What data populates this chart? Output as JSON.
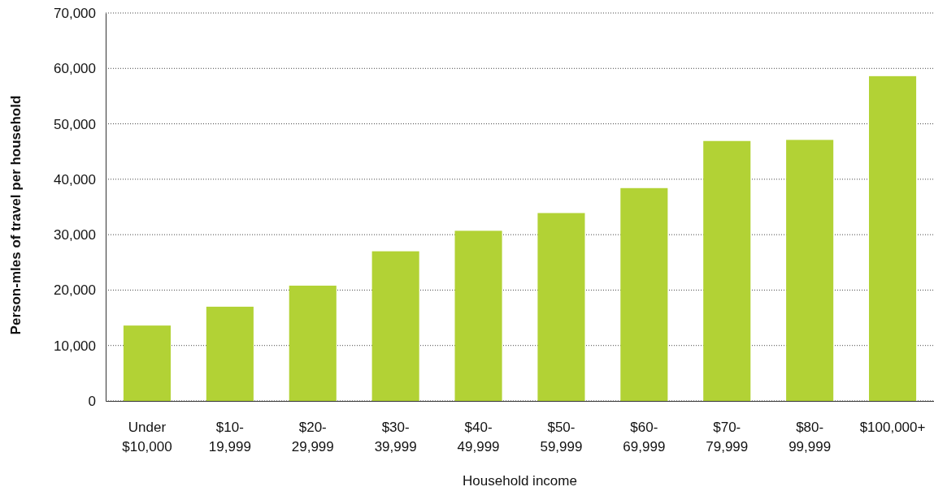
{
  "chart_data": {
    "type": "bar",
    "xlabel": "Household income",
    "ylabel": "Person-mles of travel per household",
    "categories": [
      "Under\n$10,000",
      "$10-\n19,999",
      "$20-\n29,999",
      "$30-\n39,999",
      "$40-\n49,999",
      "$50-\n59,999",
      "$60-\n69,999",
      "$70-\n79,999",
      "$80-\n99,999",
      "$100,000+"
    ],
    "values": [
      13600,
      17000,
      20800,
      27000,
      30700,
      33900,
      38400,
      46900,
      47100,
      58600
    ],
    "color": "#b2d235",
    "ylim": [
      0,
      70000
    ],
    "yticks": [
      0,
      {
        "value": 10000,
        "label": "10,000"
      },
      {
        "value": 20000,
        "label": "20,000"
      },
      {
        "value": 30000,
        "label": "30,000"
      },
      {
        "value": 40000,
        "label": "40,000"
      },
      {
        "value": 50000,
        "label": "50,000"
      },
      {
        "value": 60000,
        "label": "60,000"
      },
      {
        "value": 70000,
        "label": "70,000"
      }
    ],
    "grid": "y"
  }
}
